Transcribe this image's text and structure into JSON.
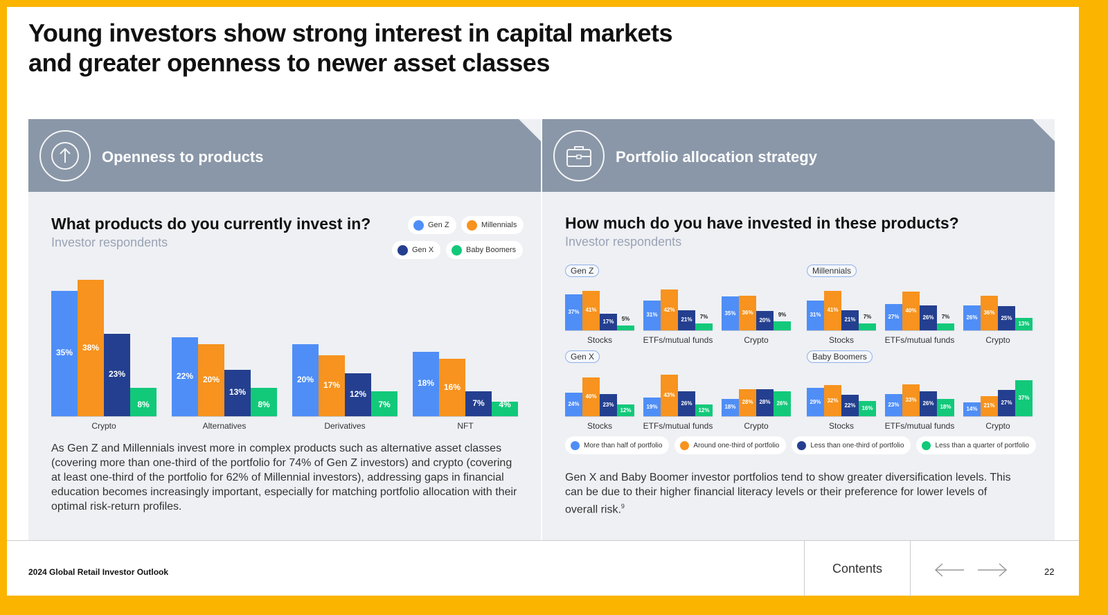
{
  "title": "Young investors show strong interest in capital markets and greater openness to newer asset classes",
  "left_panel": {
    "header": "Openness to products",
    "icon": "arrow-up-circle-icon",
    "question": "What products do you currently invest in?",
    "subtitle": "Investor respondents",
    "paragraph": "As Gen Z and Millennials invest more in complex products such as alternative asset classes (covering more than one-third of the portfolio for 74% of Gen Z investors) and crypto (covering at least one-third of the portfolio for 62% of Millennial investors), addressing gaps in financial education becomes increasingly important, especially for matching portfolio allocation with their optimal risk-return profiles."
  },
  "right_panel": {
    "header": "Portfolio allocation strategy",
    "icon": "briefcase-icon",
    "question": "How much do you have invested in these products?",
    "subtitle": "Investor respondents",
    "paragraph": "Gen X and Baby Boomer investor portfolios tend to show greater diversification levels. This can be due to their higher financial literacy levels or their preference for lower levels of overall risk.",
    "footnote": "9"
  },
  "colors": {
    "blue": "#4f8ef7",
    "orange": "#f7931e",
    "navy": "#243f8f",
    "green": "#12c97a"
  },
  "chart_data": [
    {
      "type": "bar",
      "title": "What products do you currently invest in?",
      "categories": [
        "Crypto",
        "Alternatives",
        "Derivatives",
        "NFT"
      ],
      "legend": [
        "Gen Z",
        "Millennials",
        "Gen X",
        "Baby Boomers"
      ],
      "legend_position": "top-right",
      "series": [
        {
          "name": "Gen Z",
          "values": [
            35,
            22,
            20,
            18
          ]
        },
        {
          "name": "Millennials",
          "values": [
            38,
            20,
            17,
            16
          ]
        },
        {
          "name": "Gen X",
          "values": [
            23,
            13,
            12,
            7
          ]
        },
        {
          "name": "Baby Boomers",
          "values": [
            8,
            8,
            7,
            4
          ]
        }
      ],
      "unit": "%"
    },
    {
      "type": "bar",
      "title": "How much do you have invested in these products?",
      "categories": [
        "Stocks",
        "ETFs/mutual funds",
        "Crypto"
      ],
      "legend": [
        "More than half of portfolio",
        "Around one-third of portfolio",
        "Less than one-third of portfolio",
        "Less than a quarter of portfolio"
      ],
      "legend_position": "bottom",
      "panels": [
        {
          "name": "Gen Z",
          "series": [
            [
              37,
              31,
              35
            ],
            [
              41,
              42,
              36
            ],
            [
              17,
              21,
              20
            ],
            [
              5,
              7,
              9
            ]
          ]
        },
        {
          "name": "Millennials",
          "series": [
            [
              31,
              27,
              26
            ],
            [
              41,
              40,
              36
            ],
            [
              21,
              26,
              25
            ],
            [
              7,
              7,
              13
            ]
          ]
        },
        {
          "name": "Gen X",
          "series": [
            [
              24,
              19,
              18
            ],
            [
              40,
              43,
              28
            ],
            [
              23,
              26,
              28
            ],
            [
              12,
              12,
              26
            ]
          ]
        },
        {
          "name": "Baby Boomers",
          "series": [
            [
              29,
              23,
              14
            ],
            [
              32,
              33,
              21
            ],
            [
              22,
              26,
              27
            ],
            [
              16,
              18,
              37
            ]
          ]
        }
      ],
      "unit": "%"
    }
  ],
  "footer": {
    "report": "2024 Global Retail Investor Outlook",
    "contents": "Contents",
    "page": "22"
  }
}
